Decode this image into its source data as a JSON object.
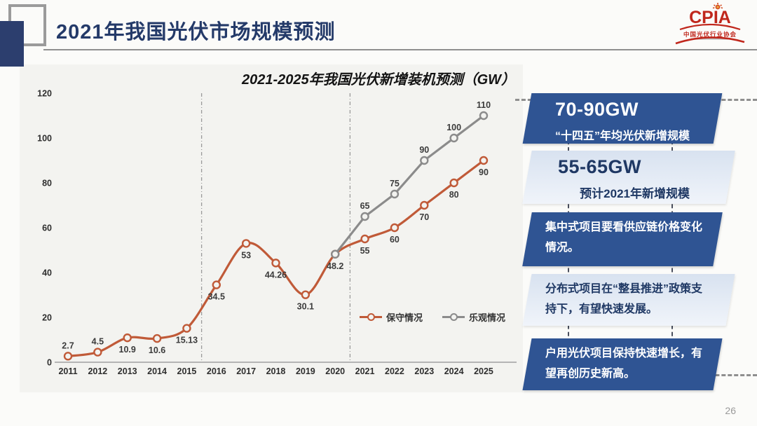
{
  "header": {
    "title": "2021年我国光伏市场规模预测",
    "logo": {
      "name": "CPIA",
      "subtitle": "中国光伏行业协会"
    }
  },
  "page_number": "26",
  "chart_data": {
    "type": "line",
    "title": "2021-2025年我国光伏新增装机预测（GW）",
    "categories": [
      "2011",
      "2012",
      "2013",
      "2014",
      "2015",
      "2016",
      "2017",
      "2018",
      "2019",
      "2020",
      "2021",
      "2022",
      "2023",
      "2024",
      "2025"
    ],
    "series": [
      {
        "name": "保守情况",
        "color": "#c05a38",
        "smooth": true,
        "values": [
          2.7,
          4.5,
          10.9,
          10.6,
          15.13,
          34.5,
          53,
          44.26,
          30.1,
          48.2,
          55,
          60,
          70,
          80,
          90
        ],
        "labels": [
          "2.7",
          "4.5",
          "10.9",
          "10.6",
          "15.13",
          "34.5",
          "53",
          "44.26",
          "30.1",
          "48.2",
          "55",
          "60",
          "70",
          "80",
          "90"
        ],
        "label_sides": [
          "above",
          "above",
          "below",
          "below",
          "below",
          "below",
          "below",
          "below",
          "below",
          "below",
          "below",
          "below",
          "below",
          "below",
          "below"
        ]
      },
      {
        "name": "乐观情况",
        "color": "#8b8b8b",
        "smooth": false,
        "values": [
          null,
          null,
          null,
          null,
          null,
          null,
          null,
          null,
          null,
          48.2,
          65,
          75,
          90,
          100,
          110
        ],
        "labels": [
          null,
          null,
          null,
          null,
          null,
          null,
          null,
          null,
          null,
          null,
          "65",
          "75",
          "90",
          "100",
          "110"
        ],
        "label_sides": [
          "above",
          "above",
          "above",
          "above",
          "above",
          "above",
          "above",
          "above",
          "above",
          "above",
          "above",
          "above",
          "above",
          "above",
          "above"
        ]
      }
    ],
    "ylim": [
      0,
      120
    ],
    "y_ticks": [
      0,
      20,
      40,
      60,
      80,
      100,
      120
    ],
    "dividers_after_index": [
      4,
      9
    ],
    "grid": false,
    "legend_position": "inside-bottom-right"
  },
  "callouts": [
    {
      "variant": "dark",
      "heading": "70-90GW",
      "body": "“十四五”年均光伏新增规模"
    },
    {
      "variant": "light",
      "heading": "55-65GW",
      "body": "预计2021年新增规模"
    },
    {
      "variant": "dark",
      "heading": "",
      "body": "集中式项目要看供应链价格变化情况。"
    },
    {
      "variant": "light",
      "heading": "",
      "body": "分布式项目在“整县推进”政策支持下，有望快速发展。"
    },
    {
      "variant": "dark",
      "heading": "",
      "body": "户用光伏项目保持快速增长，有望再创历史新高。"
    }
  ],
  "colors": {
    "title_navy": "#243a69",
    "dark_box": "#2f5493",
    "light_box": "#dde6f2",
    "panel_bg": "#f3f3f0",
    "conservative": "#c05a38",
    "optimistic": "#8b8b8b"
  }
}
